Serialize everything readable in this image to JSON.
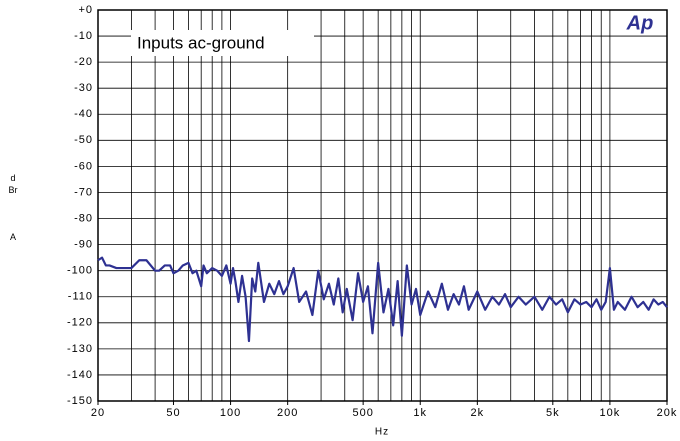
{
  "chart_data": {
    "type": "line",
    "xscale": "log",
    "color": "#2e3192",
    "annotation": "Inputs ac-ground",
    "logo": "Ap",
    "xlabel": "Hz",
    "ylabel": "dBr",
    "ylabel_unit": "A",
    "xlim": [
      20,
      20000
    ],
    "ylim": [
      -150,
      0
    ],
    "xticks": [
      20,
      50,
      100,
      200,
      500,
      {
        "value": 1000,
        "label": "1k"
      },
      {
        "value": 2000,
        "label": "2k"
      },
      {
        "value": 5000,
        "label": "5k"
      },
      {
        "value": 10000,
        "label": "10k"
      },
      {
        "value": 20000,
        "label": "20k"
      }
    ],
    "xgrid": [
      20,
      30,
      40,
      50,
      60,
      70,
      80,
      90,
      100,
      200,
      300,
      400,
      500,
      600,
      700,
      800,
      900,
      1000,
      2000,
      3000,
      4000,
      5000,
      6000,
      7000,
      8000,
      9000,
      10000,
      20000
    ],
    "yticks": [
      {
        "value": 0,
        "label": "+0"
      },
      -10,
      -20,
      -30,
      -40,
      -50,
      -60,
      -70,
      -80,
      -90,
      -100,
      -110,
      -120,
      -130,
      -140,
      -150
    ],
    "grid": true,
    "x": [
      20,
      21,
      22,
      23,
      25,
      27,
      30,
      33,
      36,
      40,
      42,
      45,
      48,
      50,
      53,
      56,
      60,
      63,
      66,
      70,
      72,
      75,
      80,
      85,
      90,
      95,
      100,
      103,
      106,
      110,
      115,
      120,
      125,
      130,
      135,
      140,
      150,
      160,
      170,
      180,
      190,
      200,
      215,
      230,
      250,
      270,
      290,
      310,
      330,
      350,
      370,
      390,
      410,
      440,
      470,
      500,
      530,
      560,
      600,
      640,
      680,
      720,
      760,
      800,
      850,
      900,
      950,
      1000,
      1100,
      1200,
      1300,
      1400,
      1500,
      1600,
      1700,
      1800,
      2000,
      2200,
      2400,
      2600,
      2800,
      3000,
      3300,
      3600,
      4000,
      4400,
      4800,
      5200,
      5600,
      6000,
      6500,
      7000,
      7500,
      8000,
      8500,
      9000,
      9500,
      10000,
      10500,
      11000,
      12000,
      13000,
      14000,
      15000,
      16000,
      17000,
      18000,
      19000,
      20000
    ],
    "values": [
      -96,
      -95,
      -98,
      -98,
      -99,
      -99,
      -99,
      -96,
      -96,
      -100,
      -100,
      -98,
      -98,
      -101,
      -100,
      -98,
      -97,
      -101,
      -100,
      -106,
      -98,
      -101,
      -99,
      -100,
      -102,
      -98,
      -105,
      -99,
      -104,
      -112,
      -102,
      -110,
      -127,
      -103,
      -108,
      -97,
      -112,
      -105,
      -109,
      -104,
      -109,
      -106,
      -99,
      -112,
      -108,
      -117,
      -100,
      -111,
      -105,
      -113,
      -103,
      -116,
      -107,
      -119,
      -101,
      -112,
      -106,
      -124,
      -97,
      -116,
      -107,
      -121,
      -104,
      -125,
      -98,
      -113,
      -107,
      -117,
      -108,
      -114,
      -105,
      -115,
      -109,
      -113,
      -106,
      -115,
      -108,
      -115,
      -110,
      -113,
      -109,
      -114,
      -110,
      -113,
      -110,
      -115,
      -110,
      -113,
      -111,
      -116,
      -111,
      -113,
      -112,
      -114,
      -111,
      -115,
      -112,
      -99,
      -115,
      -112,
      -115,
      -110,
      -114,
      -112,
      -115,
      -111,
      -113,
      -112,
      -114
    ]
  }
}
